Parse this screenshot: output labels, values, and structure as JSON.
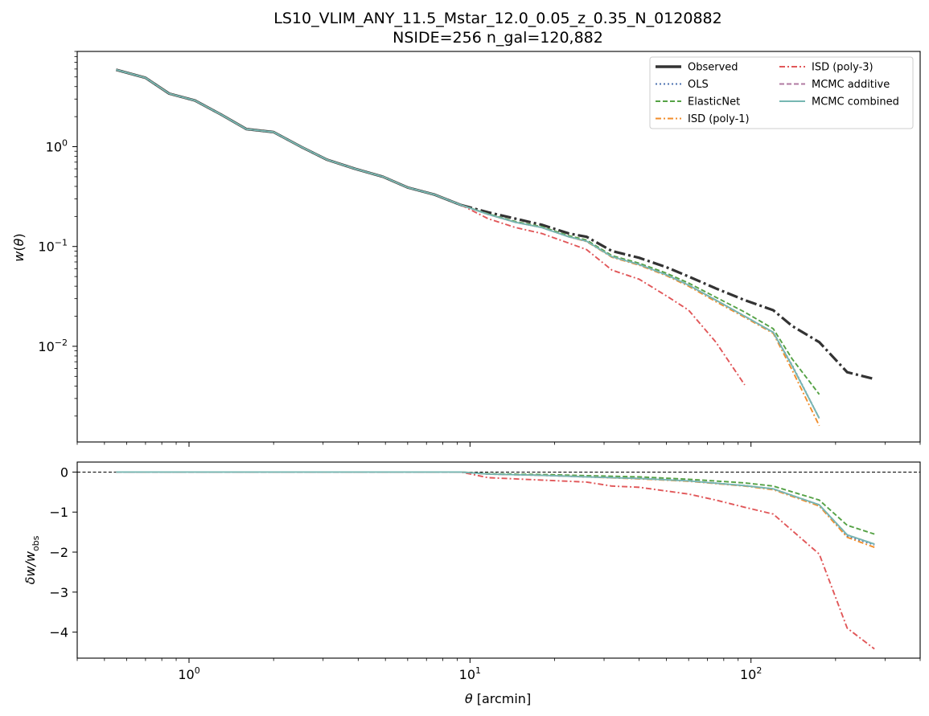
{
  "title_line1": "LS10_VLIM_ANY_11.5_Mstar_12.0_0.05_z_0.35_N_0120882",
  "title_line2": "NSIDE=256  n_gal=120,882",
  "chart_data": [
    {
      "type": "line",
      "panel": "top",
      "xlabel": "θ [arcmin]",
      "ylabel": "w(θ)",
      "xscale": "log",
      "yscale": "log",
      "xlim": [
        0.4,
        400
      ],
      "ylim": [
        0.0011,
        9
      ],
      "x_ticks": [
        {
          "v": 1,
          "base": "10",
          "exp": "0"
        },
        {
          "v": 10,
          "base": "10",
          "exp": "1"
        },
        {
          "v": 100,
          "base": "10",
          "exp": "2"
        }
      ],
      "y_ticks": [
        {
          "v": 1,
          "base": "10",
          "exp": "0"
        },
        {
          "v": 0.1,
          "base": "10",
          "exp": "−1"
        },
        {
          "v": 0.01,
          "base": "10",
          "exp": "−2"
        }
      ],
      "legend_position": "top-right",
      "series": [
        {
          "name": "Observed",
          "color": "#333333",
          "dash": "solid-then-dashdot",
          "x": [
            0.55,
            0.7,
            0.85,
            1.05,
            1.3,
            1.6,
            2.0,
            2.5,
            3.1,
            3.9,
            4.9,
            6.0,
            7.5,
            9.3,
            11.6,
            14.5,
            18.0,
            22.5,
            26.0,
            32.0,
            40.0,
            50.0,
            60.0,
            75.0,
            95.0,
            120.0,
            140.0,
            175.0,
            220.0,
            275.0
          ],
          "y": [
            5.9,
            4.9,
            3.4,
            2.9,
            2.1,
            1.5,
            1.4,
            1.0,
            0.74,
            0.6,
            0.5,
            0.39,
            0.33,
            0.26,
            0.22,
            0.19,
            0.165,
            0.135,
            0.125,
            0.09,
            0.077,
            0.062,
            0.05,
            0.038,
            0.029,
            0.023,
            0.016,
            0.011,
            0.0055,
            0.0047
          ]
        },
        {
          "name": "OLS",
          "color": "#4c72b0",
          "dash": "dotted",
          "x": [
            0.55,
            0.7,
            0.85,
            1.05,
            1.3,
            1.6,
            2.0,
            2.5,
            3.1,
            3.9,
            4.9,
            6.0,
            7.5,
            9.3,
            11.6,
            14.5,
            18.0,
            22.5,
            26.0,
            32.0,
            40.0,
            50.0,
            60.0,
            75.0,
            95.0,
            120.0,
            140.0,
            175.0
          ],
          "y": [
            5.9,
            4.9,
            3.4,
            2.9,
            2.1,
            1.5,
            1.4,
            1.0,
            0.74,
            0.6,
            0.5,
            0.39,
            0.33,
            0.26,
            0.21,
            0.175,
            0.155,
            0.125,
            0.113,
            0.079,
            0.066,
            0.052,
            0.041,
            0.029,
            0.02,
            0.0138,
            0.0065,
            0.0019
          ]
        },
        {
          "name": "ElasticNet",
          "color": "#55a245",
          "dash": "dashed",
          "x": [
            0.55,
            0.7,
            0.85,
            1.05,
            1.3,
            1.6,
            2.0,
            2.5,
            3.1,
            3.9,
            4.9,
            6.0,
            7.5,
            9.3,
            11.6,
            14.5,
            18.0,
            22.5,
            26.0,
            32.0,
            40.0,
            50.0,
            60.0,
            75.0,
            95.0,
            120.0,
            140.0,
            175.0
          ],
          "y": [
            5.9,
            4.9,
            3.4,
            2.9,
            2.1,
            1.5,
            1.4,
            1.0,
            0.74,
            0.6,
            0.5,
            0.39,
            0.33,
            0.26,
            0.212,
            0.178,
            0.158,
            0.128,
            0.116,
            0.081,
            0.068,
            0.054,
            0.043,
            0.031,
            0.022,
            0.015,
            0.0075,
            0.0033
          ]
        },
        {
          "name": "ISD (poly-1)",
          "color": "#f28e2b",
          "dash": "dashdot",
          "x": [
            0.55,
            0.7,
            0.85,
            1.05,
            1.3,
            1.6,
            2.0,
            2.5,
            3.1,
            3.9,
            4.9,
            6.0,
            7.5,
            9.3,
            11.6,
            14.5,
            18.0,
            22.5,
            26.0,
            32.0,
            40.0,
            50.0,
            60.0,
            75.0,
            95.0,
            120.0,
            140.0,
            175.0
          ],
          "y": [
            5.9,
            4.9,
            3.4,
            2.9,
            2.1,
            1.5,
            1.4,
            1.0,
            0.74,
            0.6,
            0.5,
            0.39,
            0.33,
            0.26,
            0.21,
            0.175,
            0.155,
            0.125,
            0.112,
            0.078,
            0.065,
            0.051,
            0.04,
            0.028,
            0.0195,
            0.0135,
            0.0058,
            0.0016
          ]
        },
        {
          "name": "ISD (poly-3)",
          "color": "#e15759",
          "dash": "dashdot",
          "x": [
            9.3,
            11.6,
            14.5,
            18.0,
            22.5,
            26.0,
            32.0,
            40.0,
            50.0,
            60.0,
            75.0,
            95.0
          ],
          "y": [
            0.26,
            0.19,
            0.155,
            0.135,
            0.108,
            0.093,
            0.058,
            0.047,
            0.032,
            0.023,
            0.011,
            0.0041
          ]
        },
        {
          "name": "MCMC additive",
          "color": "#b07aa1",
          "dash": "dashed",
          "x": [
            0.55,
            0.7,
            0.85,
            1.05,
            1.3,
            1.6,
            2.0,
            2.5,
            3.1,
            3.9,
            4.9,
            6.0,
            7.5,
            9.3,
            11.6,
            14.5,
            18.0,
            22.5,
            26.0,
            32.0,
            40.0,
            50.0,
            60.0,
            75.0,
            95.0,
            120.0,
            140.0,
            175.0
          ],
          "y": [
            5.9,
            4.9,
            3.4,
            2.9,
            2.1,
            1.5,
            1.4,
            1.0,
            0.74,
            0.6,
            0.5,
            0.39,
            0.33,
            0.26,
            0.21,
            0.175,
            0.155,
            0.125,
            0.113,
            0.079,
            0.066,
            0.052,
            0.041,
            0.029,
            0.02,
            0.0138,
            0.0064,
            0.0019
          ]
        },
        {
          "name": "MCMC combined",
          "color": "#76b7b2",
          "dash": "solid",
          "x": [
            0.55,
            0.7,
            0.85,
            1.05,
            1.3,
            1.6,
            2.0,
            2.5,
            3.1,
            3.9,
            4.9,
            6.0,
            7.5,
            9.3,
            11.6,
            14.5,
            18.0,
            22.5,
            26.0,
            32.0,
            40.0,
            50.0,
            60.0,
            75.0,
            95.0,
            120.0,
            140.0,
            175.0
          ],
          "y": [
            5.9,
            4.9,
            3.4,
            2.9,
            2.1,
            1.5,
            1.4,
            1.0,
            0.74,
            0.6,
            0.5,
            0.39,
            0.33,
            0.26,
            0.21,
            0.175,
            0.155,
            0.125,
            0.113,
            0.079,
            0.066,
            0.052,
            0.041,
            0.029,
            0.02,
            0.0138,
            0.0064,
            0.0019
          ]
        }
      ]
    },
    {
      "type": "line",
      "panel": "bottom",
      "xlabel": "θ [arcmin]",
      "ylabel": "δw/w_obs",
      "xscale": "log",
      "xlim": [
        0.4,
        400
      ],
      "ylim": [
        -4.65,
        0.25
      ],
      "y_ticks": [
        0,
        -1,
        -2,
        -3,
        -4
      ],
      "y_tick_labels": [
        "0",
        "−1",
        "−2",
        "−3",
        "−4"
      ],
      "reference_line": 0,
      "series": [
        {
          "name": "OLS",
          "color": "#4c72b0",
          "dash": "dotted",
          "x": [
            0.55,
            9.3,
            11.6,
            18.0,
            26.0,
            40.0,
            60.0,
            95.0,
            120.0,
            175.0,
            220.0,
            275.0
          ],
          "y": [
            0,
            0,
            -0.05,
            -0.08,
            -0.12,
            -0.16,
            -0.22,
            -0.34,
            -0.42,
            -0.82,
            -1.6,
            -1.82
          ]
        },
        {
          "name": "ElasticNet",
          "color": "#55a245",
          "dash": "dashed",
          "x": [
            0.55,
            9.3,
            11.6,
            18.0,
            26.0,
            40.0,
            60.0,
            95.0,
            120.0,
            175.0,
            220.0,
            275.0
          ],
          "y": [
            0,
            0,
            -0.04,
            -0.06,
            -0.09,
            -0.12,
            -0.18,
            -0.27,
            -0.35,
            -0.7,
            -1.33,
            -1.55
          ]
        },
        {
          "name": "ISD (poly-1)",
          "color": "#f28e2b",
          "dash": "dashdot",
          "x": [
            0.55,
            9.3,
            11.6,
            18.0,
            26.0,
            40.0,
            60.0,
            95.0,
            120.0,
            175.0,
            220.0,
            275.0
          ],
          "y": [
            0,
            0,
            -0.05,
            -0.08,
            -0.12,
            -0.17,
            -0.23,
            -0.35,
            -0.44,
            -0.85,
            -1.63,
            -1.88
          ]
        },
        {
          "name": "ISD (poly-3)",
          "color": "#e15759",
          "dash": "dashdot",
          "x": [
            0.55,
            9.3,
            11.6,
            18.0,
            26.0,
            32.0,
            40.0,
            60.0,
            75.0,
            95.0,
            120.0,
            175.0,
            220.0,
            275.0
          ],
          "y": [
            0,
            0,
            -0.14,
            -0.2,
            -0.25,
            -0.35,
            -0.38,
            -0.55,
            -0.7,
            -0.88,
            -1.05,
            -2.05,
            -3.9,
            -4.42
          ]
        },
        {
          "name": "MCMC additive",
          "color": "#b07aa1",
          "dash": "dashed",
          "x": [
            0.55,
            9.3,
            11.6,
            18.0,
            26.0,
            40.0,
            60.0,
            95.0,
            120.0,
            175.0,
            220.0,
            275.0
          ],
          "y": [
            0,
            0,
            -0.05,
            -0.08,
            -0.12,
            -0.16,
            -0.22,
            -0.34,
            -0.42,
            -0.82,
            -1.57,
            -1.8
          ]
        },
        {
          "name": "MCMC combined",
          "color": "#76b7b2",
          "dash": "solid",
          "x": [
            0.55,
            9.3,
            11.6,
            18.0,
            26.0,
            40.0,
            60.0,
            95.0,
            120.0,
            175.0,
            220.0,
            275.0
          ],
          "y": [
            0,
            0,
            -0.05,
            -0.08,
            -0.12,
            -0.16,
            -0.22,
            -0.34,
            -0.42,
            -0.82,
            -1.57,
            -1.8
          ]
        }
      ]
    }
  ]
}
